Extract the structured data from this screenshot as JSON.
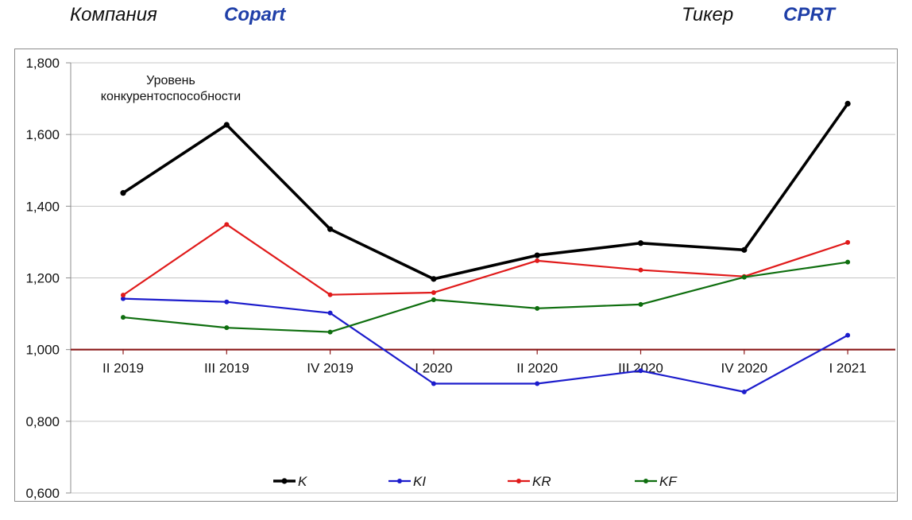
{
  "header": {
    "company_label": "Компания",
    "company_value": "Copart",
    "ticker_label": "Тикер",
    "ticker_value": "CPRT"
  },
  "chart_data": {
    "type": "line",
    "annotation": [
      "Уровень",
      "конкурентоспособности"
    ],
    "categories": [
      "II 2019",
      "III 2019",
      "IV 2019",
      "I 2020",
      "II 2020",
      "III 2020",
      "IV 2020",
      "I 2021"
    ],
    "ylim": [
      0.6,
      1.8
    ],
    "yticks": [
      1.8,
      1.6,
      1.4,
      1.2,
      1.0,
      0.8,
      0.6
    ],
    "ytick_labels": [
      "1,800",
      "1,600",
      "1,400",
      "1,200",
      "1,000",
      "0,800",
      "0,600"
    ],
    "reference_line": 1.0,
    "reference_color": "#8b1a1a",
    "grid": true,
    "legend_position": "bottom",
    "series": [
      {
        "name": "K",
        "color": "#000000",
        "values": [
          1.437,
          1.627,
          1.336,
          1.197,
          1.263,
          1.297,
          1.278,
          1.686
        ]
      },
      {
        "name": "KI",
        "color": "#1c1ccc",
        "values": [
          1.142,
          1.133,
          1.102,
          0.905,
          0.905,
          0.941,
          0.882,
          1.04
        ]
      },
      {
        "name": "KR",
        "color": "#e01a1a",
        "values": [
          1.152,
          1.349,
          1.153,
          1.159,
          1.248,
          1.222,
          1.204,
          1.299
        ]
      },
      {
        "name": "KF",
        "color": "#0e6e0e",
        "values": [
          1.09,
          1.061,
          1.049,
          1.139,
          1.115,
          1.126,
          1.202,
          1.244
        ]
      }
    ]
  }
}
